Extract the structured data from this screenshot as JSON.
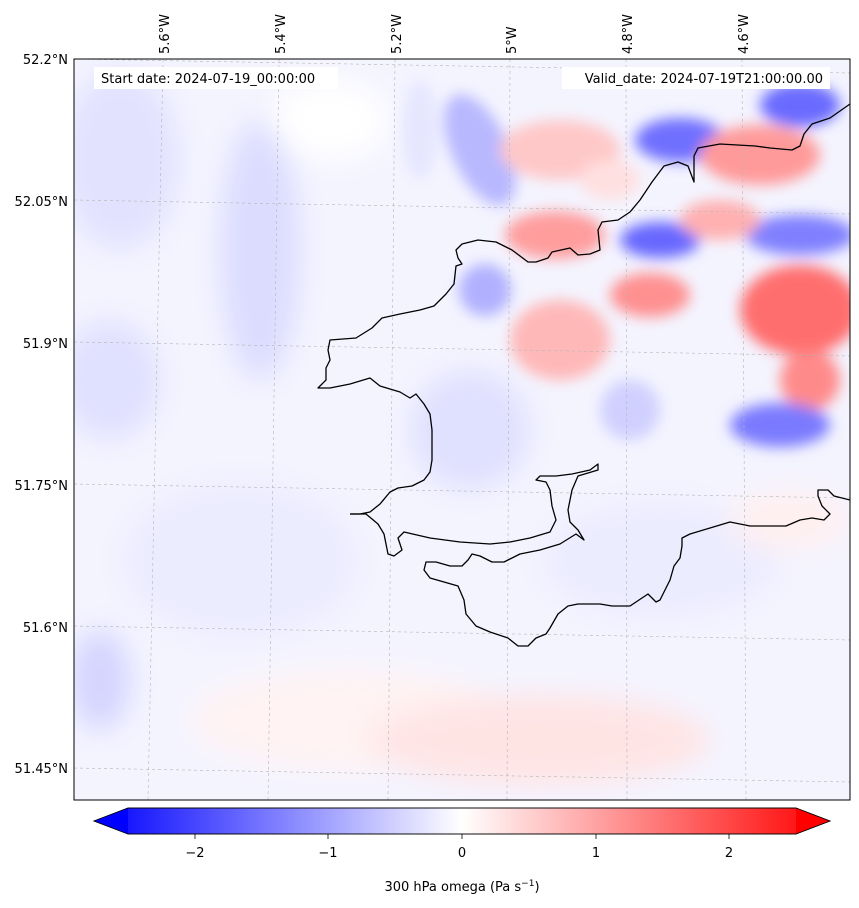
{
  "header": {
    "start_date": "Start date: 2024-07-19_00:00:00",
    "valid_date": "Valid_date: 2024-07-19T21:00:00.00"
  },
  "map": {
    "lon_labels": [
      "5.6°W",
      "5.4°W",
      "5.2°W",
      "5°W",
      "4.8°W",
      "4.6°W"
    ],
    "lat_labels": [
      "52.2°N",
      "52.05°N",
      "51.9°N",
      "51.75°N",
      "51.6°N",
      "51.45°N"
    ],
    "field": "300 hPa omega",
    "diverging_colors": {
      "negative": "#0000ff",
      "zero": "#ffffff",
      "positive": "#ff0000"
    }
  },
  "colorbar": {
    "ticks": [
      "−2",
      "−1",
      "0",
      "1",
      "2"
    ],
    "label": "300 hPa omega (Pa s",
    "label_sup": "−1",
    "label_end": ")"
  }
}
